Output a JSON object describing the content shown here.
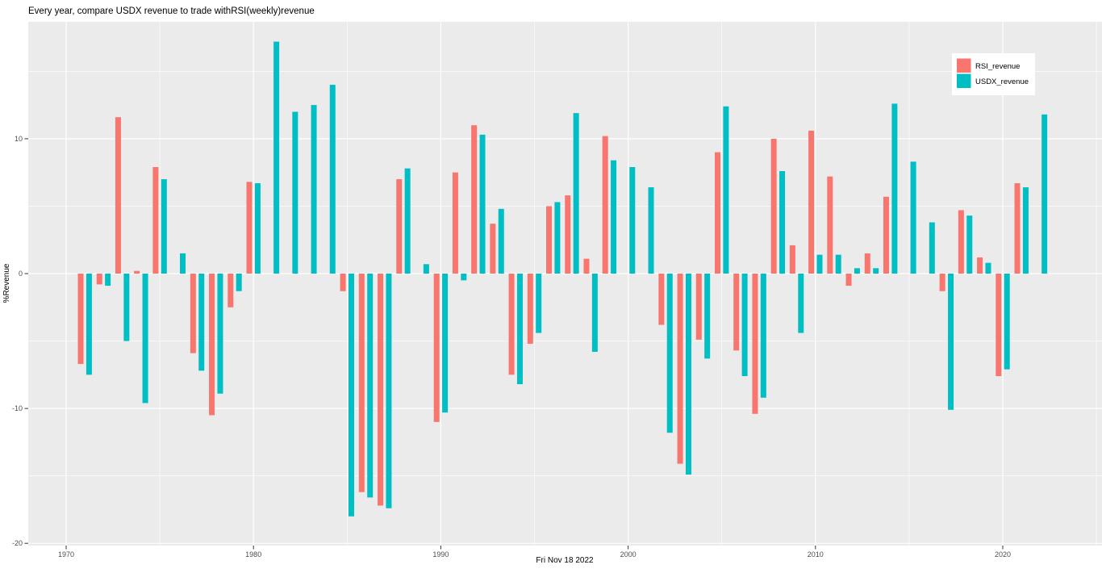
{
  "title": "Every year, compare USDX revenue to trade withRSI(weekly)revenue",
  "colors": {
    "rsi": "#F8766D",
    "usdx": "#00BFC4",
    "panel_background": "#EBEBEB",
    "gridline": "#FFFFFF",
    "tick_text": "#4D4D4D",
    "figure_background": "#FFFFFF",
    "legend_background": "#FFFFFF"
  },
  "legend": {
    "items": [
      {
        "label": "RSI_revenue",
        "color": "#F8766D"
      },
      {
        "label": "USDX_revenue",
        "color": "#00BFC4"
      }
    ]
  },
  "chart_data": {
    "type": "bar",
    "title": "Every year, compare USDX revenue to trade withRSI(weekly)revenue",
    "xlabel": "Fri Nov 18 2022",
    "ylabel": "%Revenue",
    "ylim": [
      -20.2,
      18.7
    ],
    "y_ticks": [
      10,
      0,
      -10,
      -20
    ],
    "y_minor_ticks": [
      15,
      5,
      -5,
      -15
    ],
    "x_ticks": [
      1970,
      1980,
      1990,
      2000,
      2010,
      2020
    ],
    "x_minor_ticks": [
      1975,
      1985,
      1995,
      2005,
      2015,
      2025
    ],
    "grid": true,
    "legend_position": "top-right-inside",
    "categories": [
      1971,
      1972,
      1973,
      1974,
      1975,
      1976,
      1977,
      1978,
      1979,
      1980,
      1981,
      1982,
      1983,
      1984,
      1985,
      1986,
      1987,
      1988,
      1989,
      1990,
      1991,
      1992,
      1993,
      1994,
      1995,
      1996,
      1997,
      1998,
      1999,
      2000,
      2001,
      2002,
      2003,
      2004,
      2005,
      2006,
      2007,
      2008,
      2009,
      2010,
      2011,
      2012,
      2013,
      2014,
      2015,
      2016,
      2017,
      2018,
      2019,
      2020,
      2021,
      2022
    ],
    "series": [
      {
        "name": "RSI_revenue",
        "color": "#F8766D",
        "values": [
          -6.7,
          -0.8,
          11.6,
          0.2,
          7.9,
          null,
          -5.9,
          -10.5,
          -2.5,
          6.8,
          null,
          null,
          null,
          null,
          -1.3,
          -16.2,
          -17.2,
          7.0,
          null,
          -11.0,
          7.5,
          11.0,
          3.7,
          -7.5,
          -5.2,
          5.0,
          5.8,
          1.1,
          10.2,
          null,
          null,
          -3.8,
          -14.1,
          -4.9,
          9.0,
          -5.7,
          -10.4,
          10.0,
          2.1,
          10.6,
          7.2,
          -0.9,
          1.5,
          5.7,
          null,
          null,
          -1.3,
          4.7,
          1.2,
          -7.6,
          6.7,
          null
        ]
      },
      {
        "name": "USDX_revenue",
        "color": "#00BFC4",
        "values": [
          -7.5,
          -0.9,
          -5.0,
          -9.6,
          7.0,
          1.5,
          -7.2,
          -8.9,
          -1.3,
          6.7,
          17.2,
          12.0,
          12.5,
          14.0,
          -18.0,
          -16.6,
          -17.4,
          7.8,
          0.7,
          -10.3,
          -0.5,
          10.3,
          4.8,
          -8.2,
          -4.4,
          5.3,
          11.9,
          -5.8,
          8.4,
          7.9,
          6.4,
          -11.8,
          -14.9,
          -6.3,
          12.4,
          -7.6,
          -9.2,
          7.6,
          -4.4,
          1.4,
          1.4,
          0.4,
          0.4,
          12.6,
          8.3,
          3.8,
          -10.1,
          4.3,
          0.8,
          -7.1,
          6.4,
          11.8
        ]
      }
    ]
  }
}
